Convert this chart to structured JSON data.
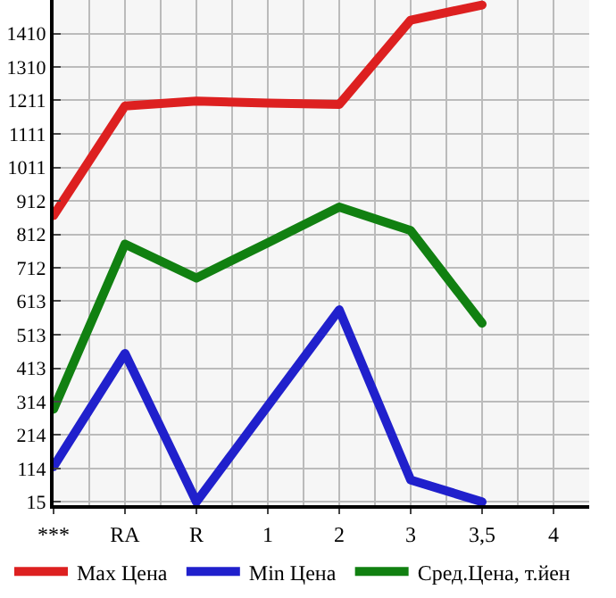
{
  "chart_data": {
    "type": "line",
    "categories": [
      "***",
      "RA",
      "R",
      "1",
      "2",
      "3",
      "3,5",
      "4"
    ],
    "series": [
      {
        "name": "Max Цена",
        "color": "#dd2020",
        "values": [
          868,
          1194,
          1209,
          1203,
          1199,
          1450,
          1495,
          null
        ]
      },
      {
        "name": "Min Цена",
        "color": "#2020cc",
        "values": [
          120,
          457,
          15,
          301,
          587,
          80,
          15,
          null
        ]
      },
      {
        "name": "Сред.Цена, т.йен",
        "color": "#118011",
        "values": [
          291,
          783,
          682,
          787,
          893,
          823,
          547,
          null
        ]
      }
    ],
    "ylim": [
      5,
      1510
    ],
    "yticks": [
      15,
      114,
      214,
      314,
      413,
      513,
      613,
      712,
      812,
      912,
      1011,
      1111,
      1211,
      1310,
      1410
    ],
    "grid": true,
    "legend": "bottom",
    "marker": "none",
    "line_style": "solid"
  }
}
